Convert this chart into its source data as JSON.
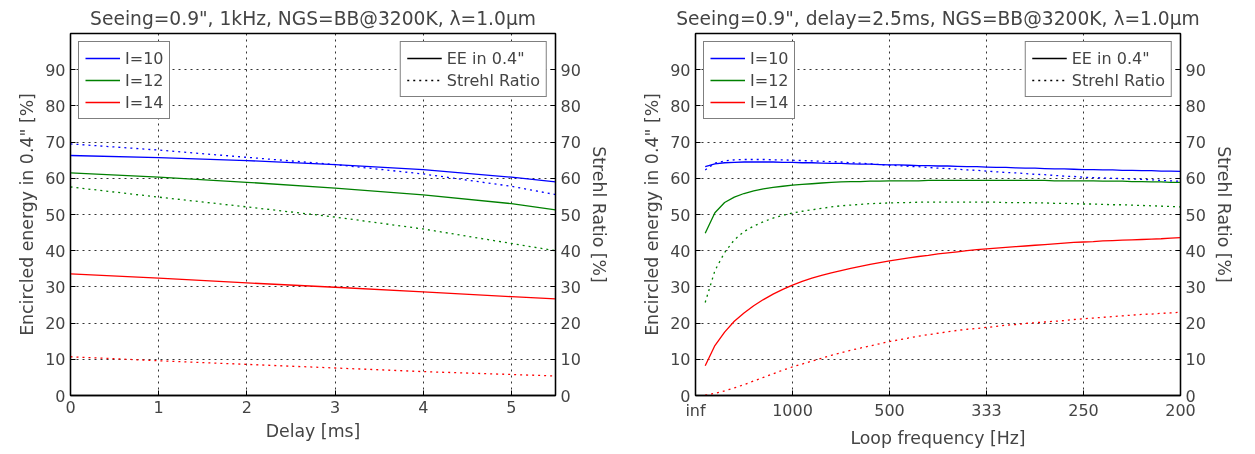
{
  "chart_data": [
    {
      "type": "line",
      "title": "Seeing=0.9\", 1kHz, NGS=BB@3200K, λ=1.0μm",
      "xlabel": "Delay [ms]",
      "ylabel": "Encircled energy in 0.4\" [%]",
      "y2label": "Strehl Ratio [%]",
      "x": [
        0,
        1,
        2,
        3,
        4,
        5,
        5.5
      ],
      "xlim": [
        0,
        5.5
      ],
      "xticks": [
        0,
        1,
        2,
        3,
        4,
        5
      ],
      "ylim": [
        0,
        100
      ],
      "yticks": [
        0,
        10,
        20,
        30,
        40,
        50,
        60,
        70,
        80,
        90
      ],
      "y2lim": [
        0,
        100
      ],
      "y2ticks": [
        0,
        10,
        20,
        30,
        40,
        50,
        60,
        70,
        80,
        90
      ],
      "grid": true,
      "legend": "top left",
      "series": [
        {
          "name": "I=10",
          "color": "#0000ff",
          "line_style": "solid",
          "values": [
            66.3,
            65.7,
            64.9,
            63.8,
            62.4,
            60.3,
            59.0
          ]
        },
        {
          "name": "I=12",
          "color": "#008000",
          "line_style": "solid",
          "values": [
            61.5,
            60.3,
            58.9,
            57.3,
            55.4,
            53.0,
            51.3
          ]
        },
        {
          "name": "I=14",
          "color": "#ff0000",
          "line_style": "solid",
          "values": [
            33.6,
            32.4,
            31.1,
            29.9,
            28.6,
            27.3,
            26.7
          ]
        },
        {
          "color": "#0000ff",
          "line_style": "dotted",
          "values": [
            69.5,
            67.8,
            65.8,
            63.8,
            61.2,
            57.8,
            55.5
          ]
        },
        {
          "color": "#008000",
          "line_style": "dotted",
          "values": [
            57.6,
            54.8,
            52.1,
            49.3,
            46.0,
            42.0,
            40.0
          ]
        },
        {
          "color": "#ff0000",
          "line_style": "dotted",
          "values": [
            10.7,
            9.6,
            8.6,
            7.6,
            6.6,
            5.8,
            5.4
          ]
        },
        {
          "name": "EE in 0.4\"",
          "color": "#000000",
          "line_style": "solid",
          "values": [
            null,
            null,
            null,
            null,
            null,
            null,
            null
          ]
        },
        {
          "name": "Strehl Ratio",
          "color": "#000000",
          "line_style": "dotted",
          "values": [
            null,
            null,
            null,
            null,
            null,
            null,
            null
          ]
        }
      ]
    },
    {
      "type": "line",
      "title": "Seeing=0.9\", delay=2.5ms, NGS=BB@3200K, λ=1.0μm",
      "xlabel": "Loop frequency [Hz]",
      "ylabel": "Encircled energy in 0.4\" [%]",
      "y2label": "Strehl Ratio [%]",
      "categories": [
        "inf",
        null,
        null,
        null,
        null,
        null,
        null,
        null,
        null,
        null,
        "1000",
        null,
        null,
        null,
        null,
        null,
        null,
        null,
        null,
        null,
        "500",
        null,
        null,
        null,
        null,
        null,
        null,
        null,
        null,
        null,
        "333",
        null,
        null,
        null,
        null,
        null,
        null,
        null,
        null,
        null,
        "250",
        null,
        null,
        null,
        null,
        null,
        null,
        null,
        null,
        null,
        "200"
      ],
      "ylim": [
        0,
        100
      ],
      "yticks": [
        0,
        10,
        20,
        30,
        40,
        50,
        60,
        70,
        80,
        90
      ],
      "y2lim": [
        0,
        100
      ],
      "y2ticks": [
        0,
        10,
        20,
        30,
        40,
        50,
        60,
        70,
        80,
        90
      ],
      "grid": true,
      "legend": "top left",
      "series": [
        {
          "name": "I=10",
          "color": "#0000ff",
          "line_style": "solid",
          "values": [
            null,
            63.2,
            64.0,
            64.3,
            64.4,
            64.5,
            64.5,
            64.5,
            64.5,
            64.4,
            64.4,
            64.3,
            64.3,
            64.2,
            64.1,
            64.1,
            64.0,
            63.9,
            63.9,
            63.8,
            63.7,
            63.7,
            63.6,
            63.5,
            63.5,
            63.4,
            63.4,
            63.3,
            63.2,
            63.2,
            63.1,
            63.0,
            63.0,
            62.9,
            62.8,
            62.8,
            62.7,
            62.6,
            62.6,
            62.5,
            62.4,
            62.4,
            62.3,
            62.3,
            62.2,
            62.2,
            62.1,
            62.1,
            62.0,
            62.0,
            61.9
          ]
        },
        {
          "name": "I=12",
          "color": "#008000",
          "line_style": "solid",
          "values": [
            null,
            44.8,
            50.5,
            53.3,
            54.8,
            55.8,
            56.5,
            57.1,
            57.5,
            57.8,
            58.1,
            58.3,
            58.5,
            58.7,
            58.9,
            59.0,
            59.1,
            59.1,
            59.2,
            59.2,
            59.3,
            59.3,
            59.3,
            59.3,
            59.4,
            59.4,
            59.4,
            59.4,
            59.4,
            59.4,
            59.4,
            59.4,
            59.4,
            59.4,
            59.4,
            59.4,
            59.4,
            59.3,
            59.3,
            59.3,
            59.3,
            59.3,
            59.2,
            59.2,
            59.2,
            59.1,
            59.1,
            59.0,
            59.0,
            58.9,
            58.9
          ]
        },
        {
          "name": "I=14",
          "color": "#ff0000",
          "line_style": "solid",
          "values": [
            null,
            8.2,
            13.8,
            17.5,
            20.5,
            22.8,
            24.8,
            26.5,
            28.0,
            29.3,
            30.5,
            31.5,
            32.4,
            33.2,
            33.9,
            34.5,
            35.1,
            35.7,
            36.2,
            36.7,
            37.2,
            37.6,
            38.0,
            38.4,
            38.7,
            39.1,
            39.4,
            39.7,
            40.0,
            40.3,
            40.5,
            40.7,
            40.9,
            41.1,
            41.3,
            41.5,
            41.7,
            41.9,
            42.1,
            42.3,
            42.4,
            42.5,
            42.7,
            42.8,
            42.9,
            43.0,
            43.1,
            43.2,
            43.3,
            43.5,
            43.6
          ]
        },
        {
          "color": "#0000ff",
          "line_style": "dotted",
          "values": [
            null,
            62.3,
            64.2,
            64.8,
            65.1,
            65.2,
            65.2,
            65.2,
            65.1,
            65.1,
            65.0,
            64.9,
            64.8,
            64.7,
            64.6,
            64.5,
            64.3,
            64.2,
            64.0,
            63.8,
            63.6,
            63.5,
            63.3,
            63.2,
            63.0,
            62.8,
            62.7,
            62.5,
            62.3,
            62.2,
            62.0,
            61.8,
            61.6,
            61.5,
            61.3,
            61.1,
            61.0,
            60.8,
            60.6,
            60.5,
            60.3,
            60.2,
            60.1,
            60.0,
            59.9,
            59.8,
            59.7,
            59.6,
            59.4,
            59.3,
            59.2
          ]
        },
        {
          "color": "#008000",
          "line_style": "dotted",
          "values": [
            null,
            25.7,
            34.5,
            39.5,
            43.0,
            45.3,
            46.8,
            48.0,
            49.0,
            49.8,
            50.4,
            50.9,
            51.3,
            51.7,
            52.1,
            52.4,
            52.6,
            52.8,
            53.0,
            53.1,
            53.2,
            53.3,
            53.3,
            53.4,
            53.4,
            53.4,
            53.4,
            53.4,
            53.4,
            53.4,
            53.4,
            53.4,
            53.3,
            53.3,
            53.3,
            53.2,
            53.2,
            53.1,
            53.1,
            53.0,
            52.9,
            52.9,
            52.8,
            52.7,
            52.7,
            52.6,
            52.5,
            52.4,
            52.3,
            52.2,
            52.1
          ]
        },
        {
          "color": "#ff0000",
          "line_style": "dotted",
          "values": [
            null,
            0.1,
            0.6,
            1.3,
            2.1,
            3.0,
            4.0,
            5.0,
            6.0,
            7.0,
            7.9,
            8.7,
            9.5,
            10.3,
            11.1,
            11.8,
            12.5,
            13.1,
            13.7,
            14.3,
            14.9,
            15.4,
            15.9,
            16.4,
            16.8,
            17.2,
            17.6,
            18.0,
            18.3,
            18.5,
            18.8,
            19.1,
            19.4,
            19.6,
            19.9,
            20.1,
            20.3,
            20.5,
            20.7,
            21.0,
            21.2,
            21.4,
            21.6,
            21.8,
            22.0,
            22.2,
            22.4,
            22.5,
            22.7,
            22.8,
            23.0
          ]
        },
        {
          "name": "EE in 0.4\"",
          "color": "#000000",
          "line_style": "solid",
          "values": [
            null,
            null,
            null,
            null,
            null,
            null,
            null,
            null,
            null,
            null,
            null,
            null,
            null,
            null,
            null,
            null,
            null,
            null,
            null,
            null,
            null,
            null,
            null,
            null,
            null,
            null,
            null,
            null,
            null,
            null,
            null,
            null,
            null,
            null,
            null,
            null,
            null,
            null,
            null,
            null,
            null,
            null,
            null,
            null,
            null,
            null,
            null,
            null,
            null,
            null,
            null
          ]
        },
        {
          "name": "Strehl Ratio",
          "color": "#000000",
          "line_style": "dotted",
          "values": [
            null,
            null,
            null,
            null,
            null,
            null,
            null,
            null,
            null,
            null,
            null,
            null,
            null,
            null,
            null,
            null,
            null,
            null,
            null,
            null,
            null,
            null,
            null,
            null,
            null,
            null,
            null,
            null,
            null,
            null,
            null,
            null,
            null,
            null,
            null,
            null,
            null,
            null,
            null,
            null,
            null,
            null,
            null,
            null,
            null,
            null,
            null,
            null,
            null,
            null,
            null
          ]
        }
      ]
    }
  ]
}
